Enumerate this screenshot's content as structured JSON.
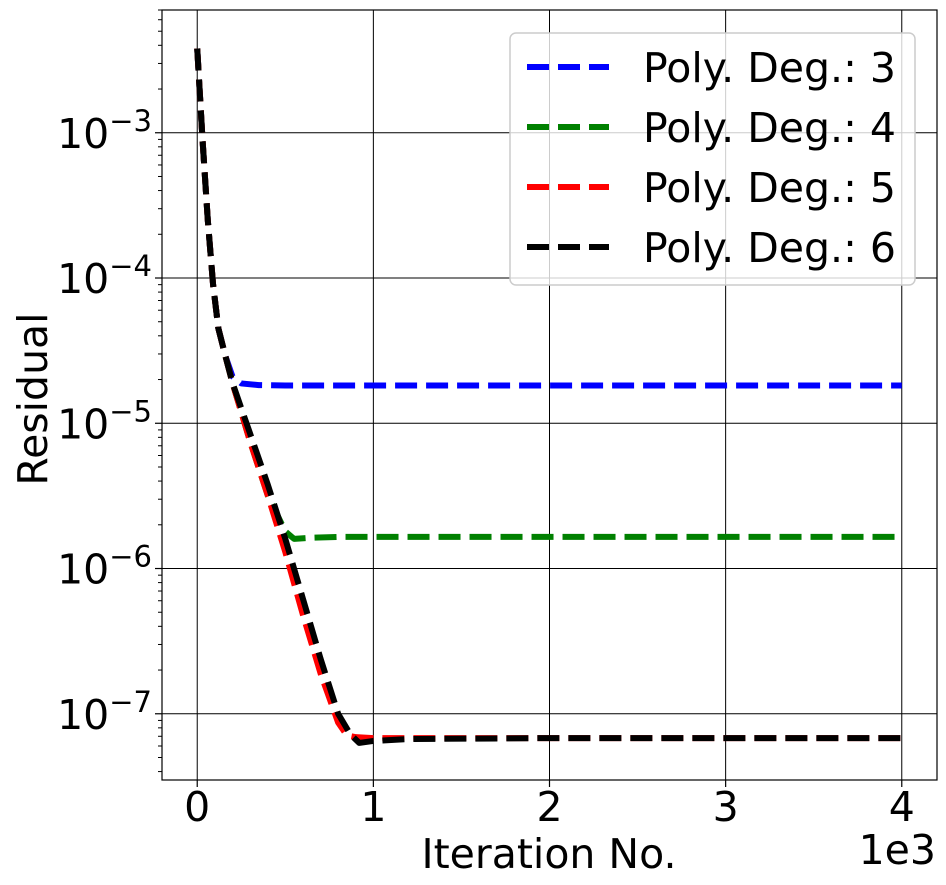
{
  "chart_data": {
    "type": "line",
    "title": "",
    "xlabel": "Iteration No.",
    "ylabel": "Residual",
    "x_offset_label": "1e3",
    "x_scale": "linear",
    "y_scale": "log",
    "xlim": [
      -0.2,
      4.2
    ],
    "ylim": [
      3.5e-08,
      0.007
    ],
    "x_ticks": [
      0,
      1,
      2,
      3,
      4
    ],
    "x_tick_labels": [
      "0",
      "1",
      "2",
      "3",
      "4"
    ],
    "y_ticks": [
      {
        "value": 0.001,
        "base": "10",
        "exp": "−3"
      },
      {
        "value": 0.0001,
        "base": "10",
        "exp": "−4"
      },
      {
        "value": 1e-05,
        "base": "10",
        "exp": "−5"
      },
      {
        "value": 1e-06,
        "base": "10",
        "exp": "−6"
      },
      {
        "value": 1e-07,
        "base": "10",
        "exp": "−7"
      }
    ],
    "grid": true,
    "legend_position": "top-right",
    "series": [
      {
        "name": "Poly. Deg.: 3",
        "color": "#0000ff",
        "x": [
          0,
          0.03,
          0.06,
          0.09,
          0.12,
          0.16,
          0.2,
          0.25,
          0.35,
          0.5,
          1.0,
          2.0,
          3.0,
          4.0
        ],
        "y": [
          0.0038,
          0.0009,
          0.00025,
          9e-05,
          4.5e-05,
          2.9e-05,
          2.1e-05,
          1.88e-05,
          1.83e-05,
          1.82e-05,
          1.82e-05,
          1.82e-05,
          1.82e-05,
          1.82e-05
        ]
      },
      {
        "name": "Poly. Deg.: 4",
        "color": "#008000",
        "x": [
          0,
          0.03,
          0.06,
          0.09,
          0.12,
          0.16,
          0.2,
          0.3,
          0.4,
          0.5,
          0.55,
          0.65,
          0.8,
          1.0,
          2.0,
          3.0,
          4.0
        ],
        "y": [
          0.0038,
          0.0009,
          0.00025,
          9e-05,
          4.5e-05,
          2.9e-05,
          1.9e-05,
          7.5e-06,
          3.2e-06,
          1.8e-06,
          1.6e-06,
          1.63e-06,
          1.65e-06,
          1.65e-06,
          1.65e-06,
          1.65e-06,
          1.65e-06
        ]
      },
      {
        "name": "Poly. Deg.: 5",
        "color": "#ff0000",
        "x": [
          0,
          0.03,
          0.06,
          0.09,
          0.12,
          0.16,
          0.2,
          0.3,
          0.4,
          0.5,
          0.6,
          0.7,
          0.8,
          0.85,
          0.9,
          1.0,
          2.0,
          3.0,
          4.0
        ],
        "y": [
          0.0038,
          0.0009,
          0.00025,
          9e-05,
          4.5e-05,
          2.9e-05,
          1.9e-05,
          7.5e-06,
          3.2e-06,
          1.3e-06,
          4.8e-07,
          1.9e-07,
          8.7e-08,
          7.1e-08,
          6.9e-08,
          6.8e-08,
          6.8e-08,
          6.8e-08,
          6.8e-08
        ]
      },
      {
        "name": "Poly. Deg.: 6",
        "color": "#000000",
        "x": [
          0,
          0.03,
          0.06,
          0.09,
          0.12,
          0.16,
          0.2,
          0.3,
          0.4,
          0.5,
          0.6,
          0.7,
          0.8,
          0.87,
          0.92,
          1.0,
          1.2,
          2.0,
          3.0,
          4.0
        ],
        "y": [
          0.0038,
          0.0009,
          0.00025,
          9e-05,
          4.5e-05,
          2.9e-05,
          1.9e-05,
          8.5e-06,
          3.8e-06,
          1.6e-06,
          6.2e-07,
          2.4e-07,
          1e-07,
          7.2e-08,
          6.3e-08,
          6.5e-08,
          6.7e-08,
          6.8e-08,
          6.8e-08,
          6.8e-08
        ]
      }
    ]
  }
}
